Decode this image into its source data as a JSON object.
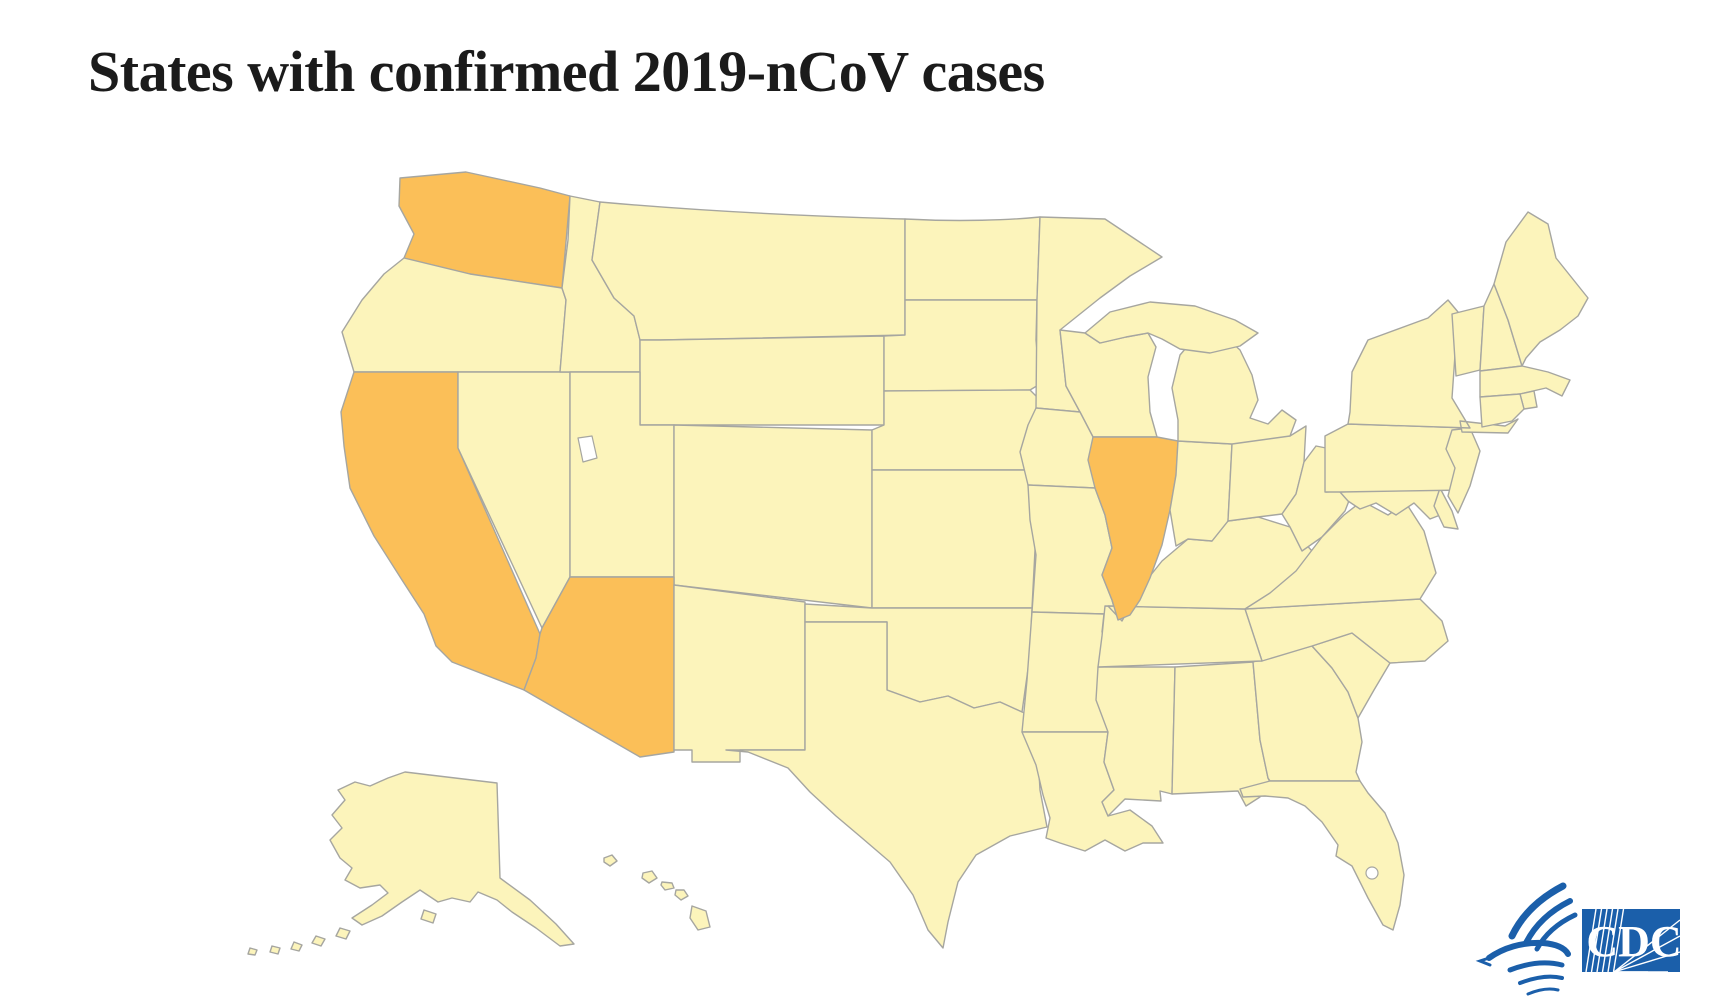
{
  "title": {
    "text": "States with confirmed 2019-nCoV cases"
  },
  "map": {
    "region": "United States",
    "type": "choropleth",
    "confirmed_states": [
      "Washington",
      "California",
      "Arizona",
      "Illinois"
    ],
    "colors": {
      "confirmed_fill": "#FBBF58",
      "default_fill": "#FCF4BB",
      "border": "#A6A6A0",
      "water_fill": "#FFFFFF"
    }
  },
  "footer": {
    "cdc_logo_text": "CDC",
    "logo_color": "#1B5FAA"
  }
}
